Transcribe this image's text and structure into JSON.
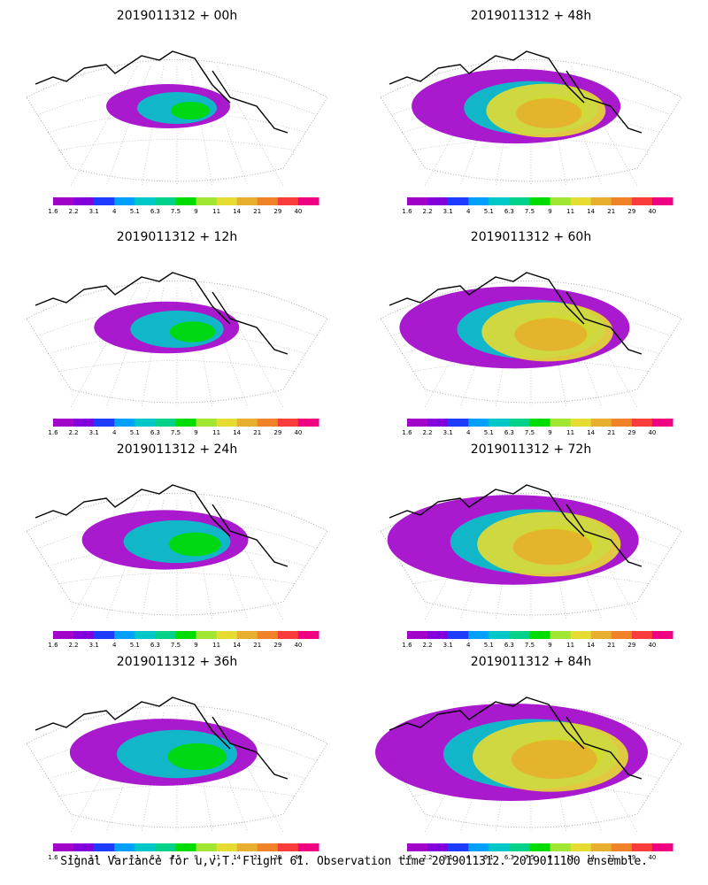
{
  "caption": "Signal Variance for u,v,T. Flight 61. Observation time 2019011312. 2019011100 ensemble.",
  "colorbar": {
    "ticks": [
      "1.6",
      "2.2",
      "3.1",
      "4",
      "5.1",
      "6.3",
      "7.5",
      "9",
      "11",
      "14",
      "21",
      "29",
      "40"
    ],
    "colors": [
      "#a000c8",
      "#8200dc",
      "#1e3cff",
      "#00a0ff",
      "#00c8c8",
      "#00d28c",
      "#00dc00",
      "#a0e632",
      "#e6dc32",
      "#e6af2d",
      "#f08228",
      "#fa3c3c",
      "#f00082"
    ]
  },
  "panels": [
    {
      "title": "2019011312 + 00h",
      "lead_hours": 0
    },
    {
      "title": "2019011312 + 48h",
      "lead_hours": 48
    },
    {
      "title": "2019011312 + 12h",
      "lead_hours": 12
    },
    {
      "title": "2019011312 + 60h",
      "lead_hours": 60
    },
    {
      "title": "2019011312 + 24h",
      "lead_hours": 24
    },
    {
      "title": "2019011312 + 72h",
      "lead_hours": 72
    },
    {
      "title": "2019011312 + 36h",
      "lead_hours": 36
    },
    {
      "title": "2019011312 + 84h",
      "lead_hours": 84
    }
  ]
}
